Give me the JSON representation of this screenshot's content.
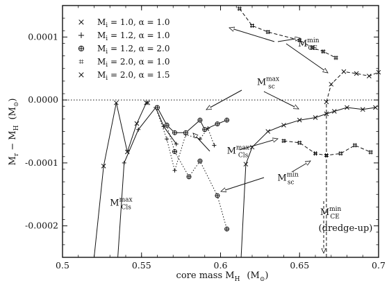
{
  "chart_data": {
    "type": "line",
    "xlabel": "core mass  M",
    "xlabel_sub": "H",
    "xlabel_unit": "(M",
    "xlabel_unit_sub": "⊙",
    "xlabel_unit_close": ")",
    "ylabel": "M",
    "ylabel_sub1": "r",
    "ylabel_mid": " − M",
    "ylabel_sub2": "H",
    "ylabel_unit": "(M",
    "ylabel_unit_sub": "⊙",
    "ylabel_unit_close": ")",
    "xlim": [
      0.5,
      0.7
    ],
    "ylim": [
      -0.00025,
      0.00015
    ],
    "x_ticks": [
      0.5,
      0.55,
      0.6,
      0.65,
      0.7
    ],
    "x_tick_labels": [
      "0.5",
      "0.55",
      "0.6",
      "0.65",
      "0.7"
    ],
    "y_ticks": [
      0.0001,
      0.0,
      -0.0001,
      -0.0002
    ],
    "y_tick_labels": [
      "0.0001",
      "0.0000",
      "-0.0001",
      "-0.0002"
    ],
    "legend_placement": "top-left",
    "legend": [
      {
        "marker": "×",
        "text": "M",
        "sub": "i",
        "rest": " = 1.0,  α = 1.0"
      },
      {
        "marker": "+",
        "text": "M",
        "sub": "i",
        "rest": " = 1.2,  α = 1.0"
      },
      {
        "marker": "⊕",
        "text": "M",
        "sub": "i",
        "rest": " = 1.2,  α = 2.0"
      },
      {
        "marker": "⌗",
        "text": "M",
        "sub": "i",
        "rest": " = 2.0,  α = 1.0"
      },
      {
        "marker": "×",
        "text": "M",
        "sub": "i",
        "rest": " = 2.0,  α = 1.5"
      }
    ],
    "series": [
      {
        "marker": "cross",
        "points": [
          [
            0.52,
            -0.00025
          ],
          [
            0.526,
            -0.000105
          ],
          [
            0.534,
            -4.5e-06
          ],
          [
            0.541,
            -8.25e-05
          ],
          [
            0.547,
            -3.75e-05
          ],
          [
            0.553,
            -4.5e-06
          ],
          [
            0.554,
            -4.5e-06
          ]
        ]
      },
      {
        "marker": "plus",
        "points": [
          [
            0.535,
            -0.00025
          ],
          [
            0.539,
            -0.0001
          ],
          [
            0.548,
            -4.7e-05
          ],
          [
            0.559,
            -1.2e-05
          ],
          [
            0.564,
            -4.2e-05
          ],
          [
            0.572,
            -7e-05
          ]
        ]
      },
      {
        "marker": "plus",
        "dashed": true,
        "points": [
          [
            0.559,
            -1.2e-05
          ],
          [
            0.566,
            -6.2e-05
          ],
          [
            0.571,
            -0.000112
          ],
          [
            0.578,
            -5.5e-05
          ],
          [
            0.587,
            -6.2e-05
          ],
          [
            0.592,
            -4.5e-05
          ],
          [
            0.596,
            -7.2e-05
          ]
        ]
      },
      {
        "marker": "circleplus",
        "points": [
          [
            0.56,
            -1.2e-05
          ],
          [
            0.566,
            -4e-05
          ],
          [
            0.571,
            -5.2e-05
          ],
          [
            0.578,
            -5.2e-05
          ],
          [
            0.587,
            -3.2e-05
          ],
          [
            0.59,
            -4.7e-05
          ],
          [
            0.598,
            -3.8e-05
          ],
          [
            0.604,
            -3.2e-05
          ]
        ]
      },
      {
        "marker": "circleplus",
        "dashed": true,
        "points": [
          [
            0.566,
            -4e-05
          ],
          [
            0.571,
            -8.2e-05
          ],
          [
            0.58,
            -0.000122
          ],
          [
            0.587,
            -9.7e-05
          ],
          [
            0.598,
            -0.000152
          ],
          [
            0.604,
            -0.000205
          ]
        ]
      },
      {
        "marker": "hash",
        "dashed": true,
        "points": [
          [
            0.612,
            0.000145
          ],
          [
            0.62,
            0.000118
          ],
          [
            0.63,
            0.000108
          ],
          [
            0.65,
            9.5e-05
          ],
          [
            0.658,
            8.3e-05
          ],
          [
            0.665,
            7.7e-05
          ],
          [
            0.673,
            6.7e-05
          ]
        ]
      },
      {
        "marker": "hash",
        "dashed": true,
        "points": [
          [
            0.64,
            -6.5e-05
          ],
          [
            0.65,
            -6.8e-05
          ],
          [
            0.66,
            -8.5e-05
          ],
          [
            0.667,
            -8.8e-05
          ],
          [
            0.676,
            -8.5e-05
          ],
          [
            0.685,
            -7.2e-05
          ],
          [
            0.695,
            -8.3e-05
          ]
        ]
      },
      {
        "marker": "cross",
        "points": [
          [
            0.613,
            -0.00025
          ],
          [
            0.616,
            -0.000102
          ],
          [
            0.62,
            -7.5e-05
          ],
          [
            0.63,
            -5e-05
          ],
          [
            0.64,
            -4e-05
          ],
          [
            0.65,
            -3.2e-05
          ],
          [
            0.66,
            -2.8e-05
          ],
          [
            0.667,
            -2.2e-05
          ],
          [
            0.672,
            -1.8e-05
          ],
          [
            0.68,
            -1.2e-05
          ],
          [
            0.69,
            -1.5e-05
          ],
          [
            0.698,
            -1.2e-05
          ]
        ]
      },
      {
        "marker": "cross",
        "dashed": true,
        "points": [
          [
            0.667,
            -0.00025
          ],
          [
            0.667,
            -3e-06
          ],
          [
            0.67,
            2.5e-05
          ],
          [
            0.678,
            4.5e-05
          ],
          [
            0.686,
            4.2e-05
          ],
          [
            0.694,
            3.8e-05
          ],
          [
            0.7,
            4.4e-05
          ]
        ]
      }
    ],
    "annotations": [
      {
        "main": "M",
        "sup": "min",
        "sub": "CE",
        "x": 0.649,
        "y": 8.5e-05
      },
      {
        "main": "M",
        "sup": "max",
        "sub": "sc",
        "x": 0.623,
        "y": 2.4e-05
      },
      {
        "main": "M",
        "sup": "max",
        "sub": "Cls",
        "x": 0.604,
        "y": -8.5e-05
      },
      {
        "main": "M",
        "sup": "min",
        "sub": "sc",
        "x": 0.636,
        "y": -0.000128
      },
      {
        "main": "M",
        "sup": "max",
        "sub": "Cls",
        "x": 0.53,
        "y": -0.000168
      },
      {
        "main": "M",
        "sup": "min",
        "sub": "CE",
        "x": 0.663,
        "y": -0.000183
      },
      {
        "main": "(dredge-up)",
        "x": 0.662,
        "y": -0.000208
      }
    ]
  }
}
